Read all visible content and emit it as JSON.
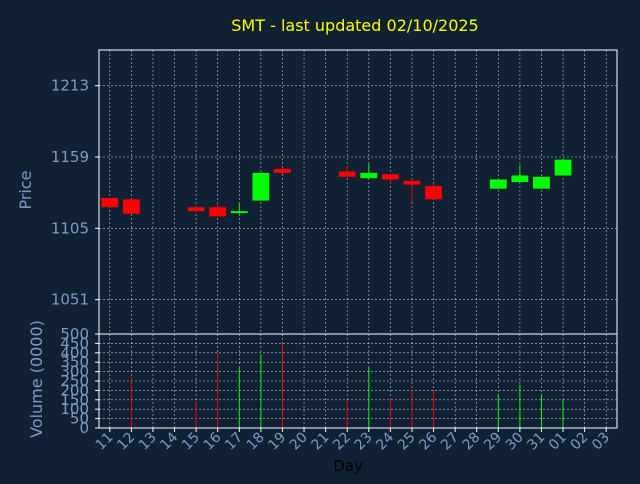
{
  "chart_data": {
    "type": "candlestick",
    "title": "SMT - last updated 02/10/2025",
    "colors": {
      "background": "#0f2133",
      "title": "#ffff00",
      "axis_text": "#7f9cc4",
      "frame": "#ffffff",
      "up": "#00ff00",
      "down": "#ff0000"
    },
    "grid": true,
    "price_panel": {
      "ylabel": "Price",
      "ylim": [
        1025,
        1240
      ],
      "yticks": [
        1051,
        1105,
        1159,
        1213
      ]
    },
    "volume_panel": {
      "ylabel": "Volume (0000)",
      "ylim": [
        0,
        500
      ],
      "yticks": [
        0,
        50,
        100,
        150,
        200,
        250,
        300,
        350,
        400,
        450,
        500
      ]
    },
    "xlabel": "Day",
    "days": [
      "11",
      "12",
      "13",
      "14",
      "15",
      "16",
      "17",
      "18",
      "19",
      "20",
      "21",
      "22",
      "23",
      "24",
      "25",
      "26",
      "27",
      "28",
      "29",
      "30",
      "31",
      "01",
      "02",
      "03"
    ],
    "candles": [
      {
        "i": 0,
        "open": 1128,
        "close": 1121,
        "high": 1128,
        "low": 1121,
        "volume": 0
      },
      {
        "i": 1,
        "open": 1127,
        "close": 1116,
        "high": 1127,
        "low": 1116,
        "volume": 270
      },
      {
        "i": 4,
        "open": 1121,
        "close": 1118,
        "high": 1122,
        "low": 1117,
        "volume": 140
      },
      {
        "i": 5,
        "open": 1121,
        "close": 1114,
        "high": 1124,
        "low": 1114,
        "volume": 400
      },
      {
        "i": 6,
        "open": 1117,
        "close": 1118,
        "high": 1124,
        "low": 1116,
        "volume": 320
      },
      {
        "i": 7,
        "open": 1126,
        "close": 1147,
        "high": 1147,
        "low": 1126,
        "volume": 390
      },
      {
        "i": 8,
        "open": 1150,
        "close": 1147,
        "high": 1151,
        "low": 1146,
        "volume": 450
      },
      {
        "i": 11,
        "open": 1148,
        "close": 1144,
        "high": 1152,
        "low": 1144,
        "volume": 150
      },
      {
        "i": 12,
        "open": 1143,
        "close": 1147,
        "high": 1154,
        "low": 1143,
        "volume": 320
      },
      {
        "i": 13,
        "open": 1146,
        "close": 1142,
        "high": 1146,
        "low": 1139,
        "volume": 160
      },
      {
        "i": 14,
        "open": 1141,
        "close": 1138,
        "high": 1141,
        "low": 1125,
        "volume": 200
      },
      {
        "i": 15,
        "open": 1137,
        "close": 1127,
        "high": 1139,
        "low": 1127,
        "volume": 200
      },
      {
        "i": 18,
        "open": 1135,
        "close": 1142,
        "high": 1142,
        "low": 1135,
        "volume": 180
      },
      {
        "i": 19,
        "open": 1140,
        "close": 1145,
        "high": 1153,
        "low": 1140,
        "volume": 230
      },
      {
        "i": 20,
        "open": 1135,
        "close": 1144,
        "high": 1144,
        "low": 1135,
        "volume": 180
      },
      {
        "i": 21,
        "open": 1145,
        "close": 1157,
        "high": 1157,
        "low": 1145,
        "volume": 150
      }
    ]
  }
}
